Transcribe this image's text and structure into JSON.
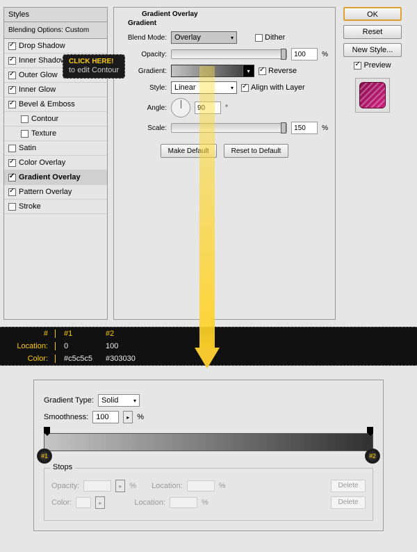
{
  "styles": {
    "header": "Styles",
    "subheader": "Blending Options: Custom",
    "items": [
      {
        "label": "Drop Shadow",
        "checked": true,
        "selected": false,
        "indent": false
      },
      {
        "label": "Inner Shadow",
        "checked": true,
        "selected": false,
        "indent": false
      },
      {
        "label": "Outer Glow",
        "checked": true,
        "selected": false,
        "indent": false
      },
      {
        "label": "Inner Glow",
        "checked": true,
        "selected": false,
        "indent": false
      },
      {
        "label": "Bevel & Emboss",
        "checked": true,
        "selected": false,
        "indent": false
      },
      {
        "label": "Contour",
        "checked": false,
        "selected": false,
        "indent": true
      },
      {
        "label": "Texture",
        "checked": false,
        "selected": false,
        "indent": true
      },
      {
        "label": "Satin",
        "checked": false,
        "selected": false,
        "indent": false
      },
      {
        "label": "Color Overlay",
        "checked": true,
        "selected": false,
        "indent": false
      },
      {
        "label": "Gradient Overlay",
        "checked": true,
        "selected": true,
        "indent": false
      },
      {
        "label": "Pattern Overlay",
        "checked": true,
        "selected": false,
        "indent": false
      },
      {
        "label": "Stroke",
        "checked": false,
        "selected": false,
        "indent": false
      }
    ]
  },
  "gradientOverlay": {
    "title": "Gradient Overlay",
    "section": "Gradient",
    "blendModeLabel": "Blend Mode:",
    "blendMode": "Overlay",
    "ditherLabel": "Dither",
    "ditherChecked": false,
    "opacityLabel": "Opacity:",
    "opacity": "100",
    "gradientLabel": "Gradient:",
    "reverseLabel": "Reverse",
    "reverseChecked": true,
    "styleLabel": "Style:",
    "style": "Linear",
    "alignLabel": "Align with Layer",
    "alignChecked": true,
    "angleLabel": "Angle:",
    "angle": "90",
    "scaleLabel": "Scale:",
    "scale": "150",
    "makeDefault": "Make Default",
    "resetDefault": "Reset to Default",
    "start_color": "#c5c5c5",
    "end_color": "#303030"
  },
  "rightButtons": {
    "ok": "OK",
    "reset": "Reset",
    "newStyle": "New Style...",
    "previewLabel": "Preview",
    "previewChecked": true
  },
  "callout": {
    "line1": "CLICK HERE!",
    "line2": "to edit Contour"
  },
  "infoTable": {
    "hdr_num": "#",
    "hdr_loc": "Location:",
    "hdr_col": "Color:",
    "c1_num": "#1",
    "c1_loc": "0",
    "c1_col": "#c5c5c5",
    "c2_num": "#2",
    "c2_loc": "100",
    "c2_col": "#303030"
  },
  "gradEditor": {
    "typeLabel": "Gradient Type:",
    "type": "Solid",
    "smoothLabel": "Smoothness:",
    "smooth": "100",
    "stopsLabel": "Stops",
    "opacityLabel": "Opacity:",
    "locationLabel": "Location:",
    "colorLabel": "Color:",
    "deleteLabel": "Delete",
    "badge1": "#1",
    "badge2": "#2",
    "pct": "%"
  }
}
